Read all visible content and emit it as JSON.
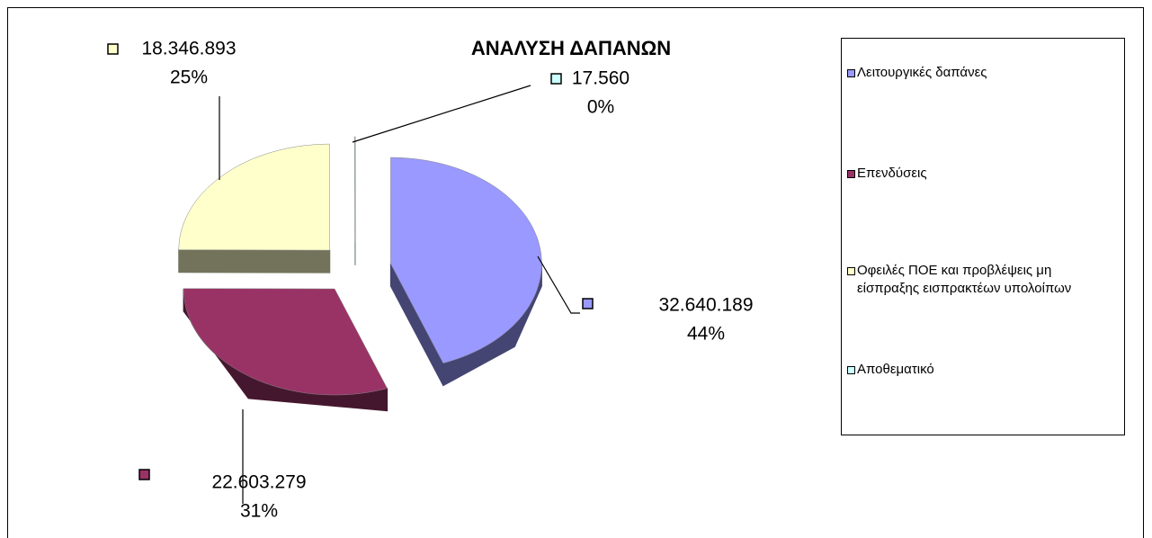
{
  "chart_data": {
    "type": "pie",
    "title": "ΑΝΑΛΥΣΗ ΔΑΠΑΝΩΝ",
    "categories": [
      "Λειτουργικές δαπάνες",
      "Επενδύσεις",
      "Οφειλές ΠΟΕ και προβλέψεις μη είσπραξης εισπρακτέων υπολοίπων",
      "Αποθεματικό"
    ],
    "values": [
      32640189,
      22603279,
      18346893,
      17560
    ],
    "value_labels": [
      "32.640.189",
      "22.603.279",
      "18.346.893",
      "17.560"
    ],
    "percentages": [
      44,
      31,
      25,
      0
    ],
    "percentage_labels": [
      "44%",
      "31%",
      "25%",
      "0%"
    ],
    "colors": [
      "#9999ff",
      "#993366",
      "#ffffcc",
      "#ccffff"
    ],
    "legend": "right"
  }
}
